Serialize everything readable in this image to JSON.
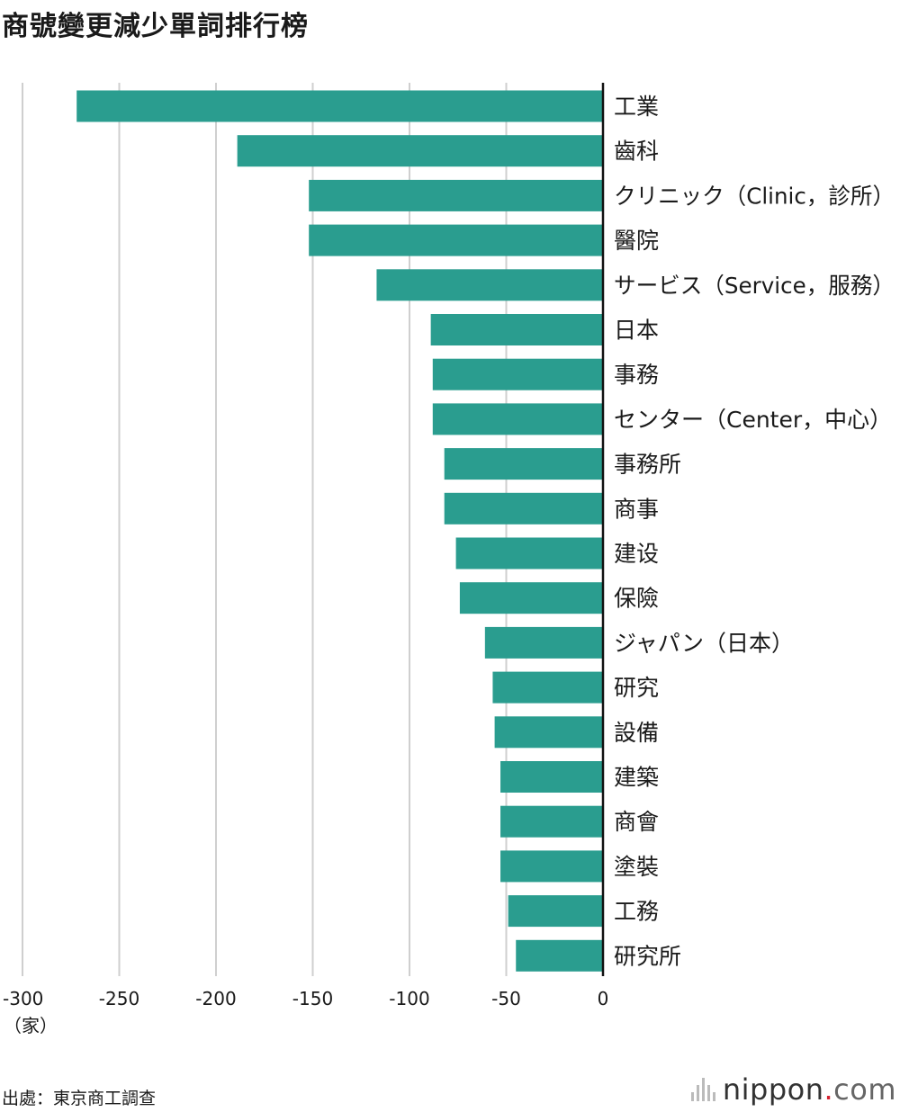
{
  "title": "商號變更減少單詞排行榜",
  "unit_label": "（家）",
  "source": "出處：東京商工調查",
  "logo": {
    "name": "nippon",
    "dot": ".",
    "tld": "com"
  },
  "colors": {
    "bar": "#2a9d8f",
    "grid": "#cfcfcf",
    "axis": "#111111"
  },
  "chart_data": {
    "type": "bar",
    "orientation": "horizontal",
    "categories": [
      "工業",
      "齒科",
      "クリニック（Clinic，診所）",
      "醫院",
      "サービス（Service，服務）",
      "日本",
      "事務",
      "センター（Center，中心）",
      "事務所",
      "商事",
      "建设",
      "保險",
      "ジャパン（日本）",
      "研究",
      "設備",
      "建築",
      "商會",
      "塗裝",
      "工務",
      "研究所"
    ],
    "values": [
      -272,
      -189,
      -152,
      -152,
      -117,
      -89,
      -88,
      -88,
      -82,
      -82,
      -76,
      -74,
      -61,
      -57,
      -56,
      -53,
      -53,
      -53,
      -49,
      -45
    ],
    "xlim": [
      -300,
      0
    ],
    "xticks": [
      -300,
      -250,
      -200,
      -150,
      -100,
      -50,
      0
    ],
    "xtick_labels": [
      "-300",
      "-250",
      "-200",
      "-150",
      "-100",
      "-50",
      "0"
    ],
    "grid": true
  }
}
